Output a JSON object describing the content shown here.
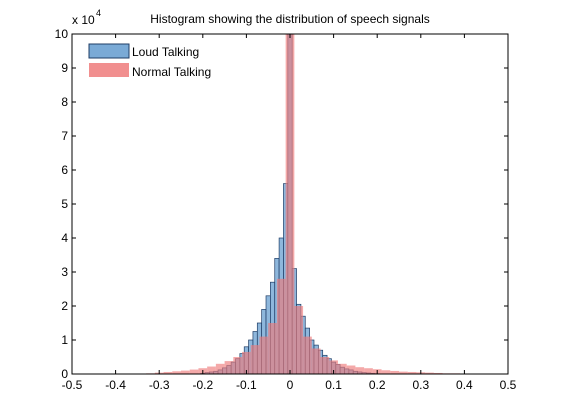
{
  "chart_data": {
    "type": "bar",
    "title": "Histogram showing the distribution of speech signals",
    "xlabel": "",
    "ylabel": "",
    "xlim": [
      -0.5,
      0.5
    ],
    "ylim": [
      0,
      10
    ],
    "y_multiplier_label": "x 10",
    "y_multiplier_exponent": "4",
    "x_ticks": [
      "-0.5",
      "-0.4",
      "-0.3",
      "-0.2",
      "-0.1",
      "0",
      "0.1",
      "0.2",
      "0.3",
      "0.4",
      "0.5"
    ],
    "y_ticks": [
      "0",
      "1",
      "2",
      "3",
      "4",
      "5",
      "6",
      "7",
      "8",
      "9",
      "10"
    ],
    "bin_width": 0.01,
    "grid": false,
    "legend_position": "top-left",
    "series": [
      {
        "name": "Loud Talking",
        "color": "#7aaad6",
        "edge": "#1f3d66",
        "x": [
          -0.2,
          -0.19,
          -0.18,
          -0.17,
          -0.16,
          -0.15,
          -0.14,
          -0.13,
          -0.12,
          -0.11,
          -0.1,
          -0.09,
          -0.08,
          -0.07,
          -0.06,
          -0.05,
          -0.04,
          -0.03,
          -0.02,
          -0.01,
          0.0,
          0.01,
          0.02,
          0.03,
          0.04,
          0.05,
          0.06,
          0.07,
          0.08,
          0.09,
          0.1,
          0.11,
          0.12,
          0.13,
          0.14,
          0.15,
          0.16,
          0.17,
          0.18,
          0.19,
          0.2
        ],
        "values": [
          0.02,
          0.04,
          0.06,
          0.08,
          0.12,
          0.18,
          0.25,
          0.35,
          0.45,
          0.6,
          0.8,
          1.0,
          1.25,
          1.5,
          1.9,
          2.3,
          2.7,
          3.4,
          4.0,
          5.6,
          10.0,
          3.1,
          2.05,
          1.7,
          1.35,
          1.0,
          0.85,
          0.7,
          0.55,
          0.45,
          0.35,
          0.28,
          0.2,
          0.15,
          0.12,
          0.08,
          0.06,
          0.04,
          0.03,
          0.02,
          0.01
        ]
      },
      {
        "name": "Normal Talking",
        "color": "#ee7b7b",
        "x": [
          -0.32,
          -0.3,
          -0.28,
          -0.26,
          -0.24,
          -0.22,
          -0.2,
          -0.18,
          -0.16,
          -0.14,
          -0.12,
          -0.1,
          -0.08,
          -0.06,
          -0.04,
          -0.02,
          0.0,
          0.02,
          0.04,
          0.06,
          0.08,
          0.1,
          0.12,
          0.14,
          0.16,
          0.18,
          0.2,
          0.22,
          0.24,
          0.26,
          0.28,
          0.3,
          0.32,
          0.34,
          0.36,
          0.38,
          0.4
        ],
        "values": [
          0.02,
          0.04,
          0.06,
          0.08,
          0.1,
          0.13,
          0.17,
          0.22,
          0.3,
          0.38,
          0.5,
          0.65,
          0.85,
          1.1,
          1.5,
          2.8,
          10.0,
          2.0,
          1.1,
          0.75,
          0.5,
          0.4,
          0.3,
          0.25,
          0.2,
          0.17,
          0.14,
          0.11,
          0.09,
          0.07,
          0.06,
          0.05,
          0.04,
          0.03,
          0.02,
          0.02,
          0.01
        ]
      }
    ]
  }
}
